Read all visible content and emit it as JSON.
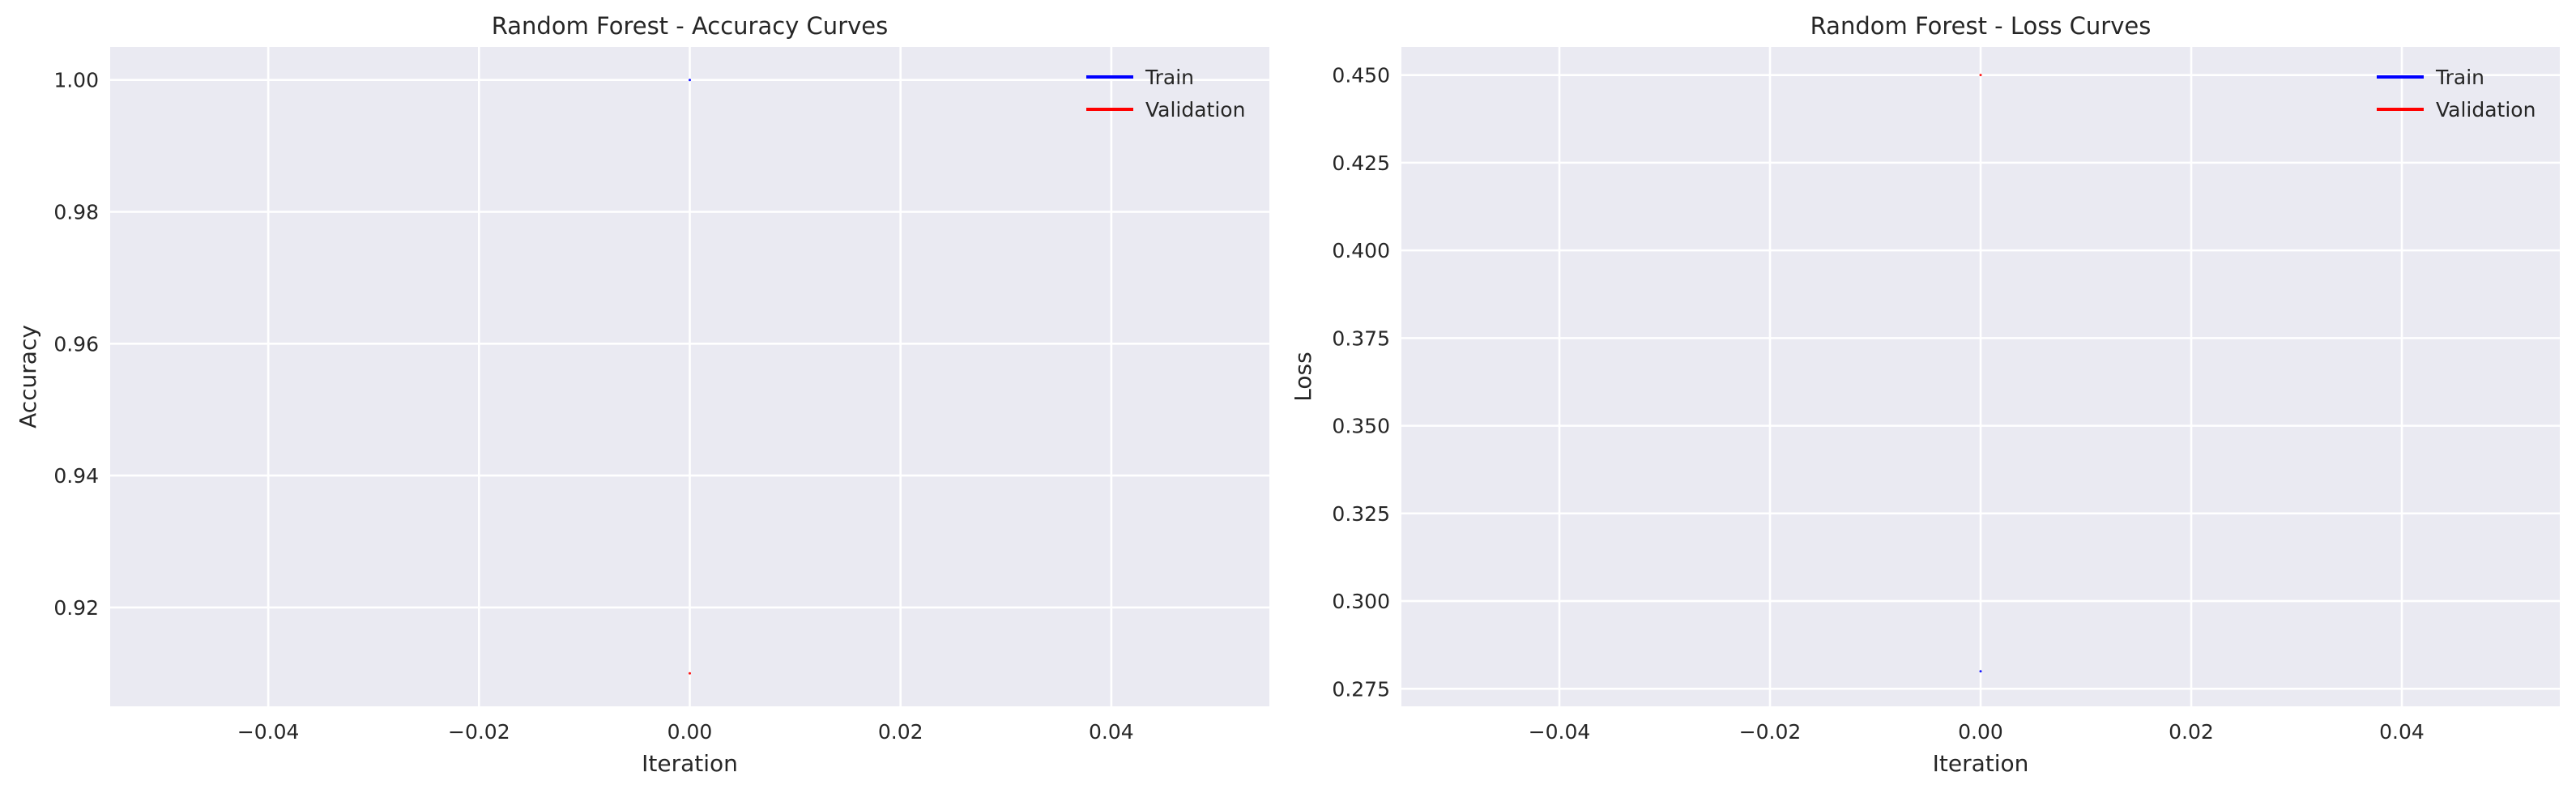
{
  "chart_data": [
    {
      "type": "line",
      "title": "Random Forest - Accuracy Curves",
      "xlabel": "Iteration",
      "ylabel": "Accuracy",
      "xlim": [
        -0.055,
        0.055
      ],
      "ylim": [
        0.905,
        1.005
      ],
      "xticks": [
        -0.04,
        -0.02,
        0.0,
        0.02,
        0.04
      ],
      "xtick_labels": [
        "−0.04",
        "−0.02",
        "0.00",
        "0.02",
        "0.04"
      ],
      "yticks": [
        0.92,
        0.94,
        0.96,
        0.98,
        1.0
      ],
      "ytick_labels": [
        "0.92",
        "0.94",
        "0.96",
        "0.98",
        "1.00"
      ],
      "grid": true,
      "legend_position": "top-right",
      "series": [
        {
          "name": "Train",
          "color": "#0000ff",
          "x": [
            0
          ],
          "y": [
            1.0
          ]
        },
        {
          "name": "Validation",
          "color": "#ff0000",
          "x": [
            0
          ],
          "y": [
            0.91
          ]
        }
      ]
    },
    {
      "type": "line",
      "title": "Random Forest - Loss Curves",
      "xlabel": "Iteration",
      "ylabel": "Loss",
      "xlim": [
        -0.055,
        0.055
      ],
      "ylim": [
        0.27,
        0.458
      ],
      "xticks": [
        -0.04,
        -0.02,
        0.0,
        0.02,
        0.04
      ],
      "xtick_labels": [
        "−0.04",
        "−0.02",
        "0.00",
        "0.02",
        "0.04"
      ],
      "yticks": [
        0.275,
        0.3,
        0.325,
        0.35,
        0.375,
        0.4,
        0.425,
        0.45
      ],
      "ytick_labels": [
        "0.275",
        "0.300",
        "0.325",
        "0.350",
        "0.375",
        "0.400",
        "0.425",
        "0.450"
      ],
      "grid": true,
      "legend_position": "top-right",
      "series": [
        {
          "name": "Train",
          "color": "#0000ff",
          "x": [
            0
          ],
          "y": [
            0.28
          ]
        },
        {
          "name": "Validation",
          "color": "#ff0000",
          "x": [
            0
          ],
          "y": [
            0.45
          ]
        }
      ]
    }
  ]
}
